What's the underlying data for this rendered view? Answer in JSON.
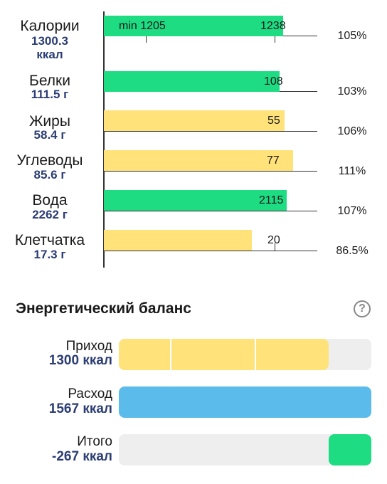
{
  "nutrients": [
    {
      "name": "Калории",
      "amount": "1300.3",
      "unit": "ккал",
      "bar_label": "1238",
      "min_label": "min 1205",
      "percent": "105%",
      "fill_ratio": 1.05,
      "color": "#1edc82"
    },
    {
      "name": "Белки",
      "amount": "111.5 г",
      "bar_label": "108",
      "percent": "103%",
      "fill_ratio": 1.03,
      "color": "#1edc82"
    },
    {
      "name": "Жиры",
      "amount": "58.4 г",
      "bar_label": "55",
      "percent": "106%",
      "fill_ratio": 1.06,
      "color": "#ffe27a"
    },
    {
      "name": "Углеводы",
      "amount": "85.6 г",
      "bar_label": "77",
      "percent": "111%",
      "fill_ratio": 1.11,
      "color": "#ffe27a"
    },
    {
      "name": "Вода",
      "amount": "2262 г",
      "bar_label": "2115",
      "percent": "107%",
      "fill_ratio": 1.07,
      "color": "#1edc82"
    },
    {
      "name": "Клетчатка",
      "amount": "17.3 г",
      "bar_label": "20",
      "percent": "86.5%",
      "fill_ratio": 0.865,
      "color": "#ffe27a"
    }
  ],
  "energy": {
    "title": "Энергетический баланс",
    "help_icon": "help-circle-icon",
    "help_glyph": "?",
    "income": {
      "label": "Приход",
      "value": "1300 ккал",
      "fill_ratio": 0.83,
      "color": "#ffe27a"
    },
    "expense": {
      "label": "Расход",
      "value": "1567 ккал",
      "fill_ratio": 1.0,
      "color": "#5bbcec"
    },
    "total": {
      "label": "Итого",
      "value": "-267 ккал",
      "fill_ratio": 0.17,
      "color": "#1edc82"
    }
  }
}
